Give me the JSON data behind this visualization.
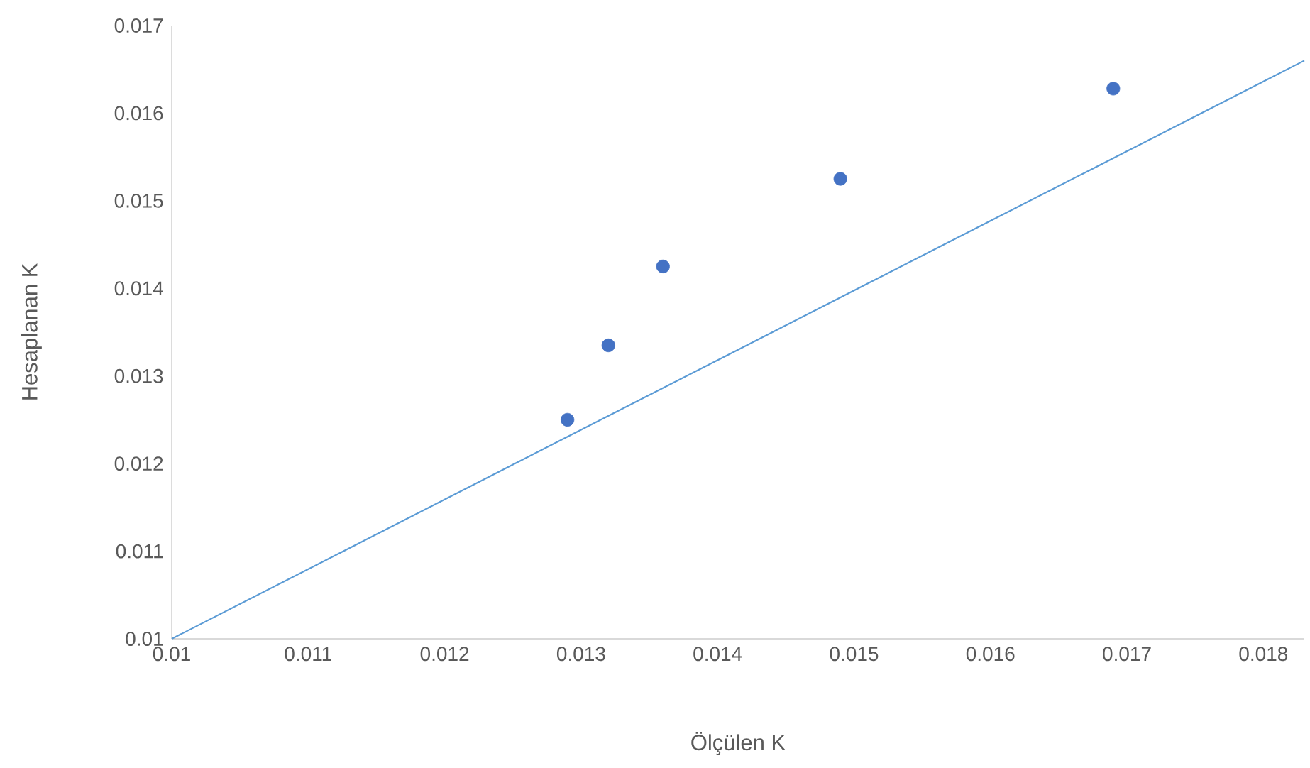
{
  "chart_data": {
    "type": "scatter",
    "xlabel": "Ölçülen K",
    "ylabel": "Hesaplanan K",
    "xlim": [
      0.01,
      0.0183
    ],
    "ylim": [
      0.01,
      0.017
    ],
    "xticks": [
      0.01,
      0.011,
      0.012,
      0.013,
      0.014,
      0.015,
      0.016,
      0.017,
      0.018
    ],
    "yticks": [
      0.01,
      0.011,
      0.012,
      0.013,
      0.014,
      0.015,
      0.016,
      0.017
    ],
    "series": [
      {
        "marker": "circle",
        "color": "#4472c4",
        "x": [
          0.0129,
          0.0132,
          0.0136,
          0.0149,
          0.0169
        ],
        "values": [
          0.0125,
          0.01335,
          0.01425,
          0.01525,
          0.01628
        ]
      },
      {
        "type": "line",
        "marker": "none",
        "line_style": "solid",
        "color": "#5b9bd5",
        "x": [
          0.01,
          0.0183
        ],
        "values": [
          0.01,
          0.0166
        ]
      }
    ]
  }
}
